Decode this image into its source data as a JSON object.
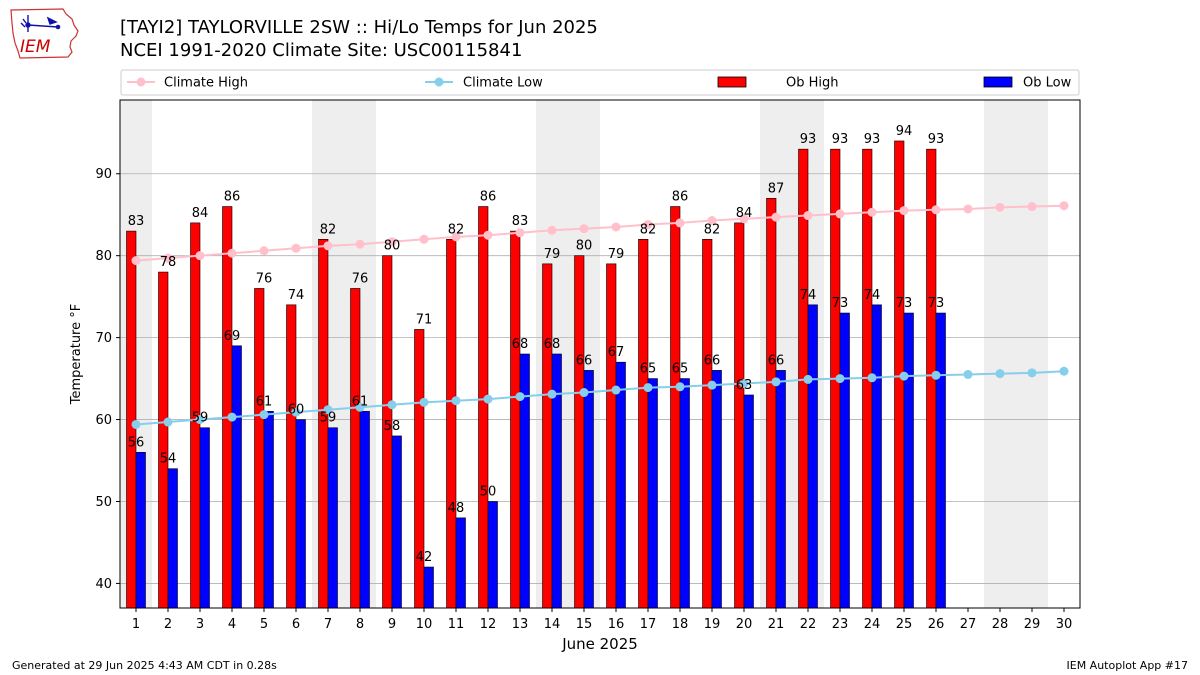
{
  "logo": {
    "text": "IEM",
    "icon": "iowa-state-outline-icon",
    "color": "#cc0000"
  },
  "header": {
    "title_line_1": "[TAYI2] TAYLORVILLE 2SW :: Hi/Lo Temps for Jun 2025",
    "title_line_2": "NCEI 1991-2020 Climate Site: USC00115841"
  },
  "footer": {
    "generated": "Generated at 29 Jun 2025 4:43 AM CDT in 0.28s",
    "app": "IEM Autoplot App #17"
  },
  "chart_data": {
    "type": "bar",
    "xlabel": "June 2025",
    "ylabel": "Temperature °F",
    "ylim": [
      37,
      99
    ],
    "yticks": [
      40,
      50,
      60,
      70,
      80,
      90
    ],
    "grid": "horizontal",
    "legend_placement": "top",
    "categories": [
      "1",
      "2",
      "3",
      "4",
      "5",
      "6",
      "7",
      "8",
      "9",
      "10",
      "11",
      "12",
      "13",
      "14",
      "15",
      "16",
      "17",
      "18",
      "19",
      "20",
      "21",
      "22",
      "23",
      "24",
      "25",
      "26",
      "27",
      "28",
      "29",
      "30"
    ],
    "weekend_shading": [
      [
        1,
        1
      ],
      [
        7,
        8
      ],
      [
        14,
        15
      ],
      [
        21,
        22
      ],
      [
        28,
        29
      ]
    ],
    "series": [
      {
        "name": "Climate High",
        "kind": "line",
        "color": "#ffc0cb",
        "values": [
          79.4,
          79.7,
          80.0,
          80.3,
          80.6,
          80.9,
          81.2,
          81.4,
          81.7,
          82.0,
          82.3,
          82.5,
          82.8,
          83.1,
          83.3,
          83.5,
          83.8,
          84.0,
          84.3,
          84.5,
          84.7,
          84.9,
          85.1,
          85.3,
          85.5,
          85.6,
          85.7,
          85.9,
          86.0,
          86.1
        ]
      },
      {
        "name": "Climate Low",
        "kind": "line",
        "color": "#87ceeb",
        "values": [
          59.4,
          59.7,
          60.0,
          60.3,
          60.6,
          60.9,
          61.2,
          61.5,
          61.8,
          62.1,
          62.3,
          62.5,
          62.8,
          63.1,
          63.3,
          63.6,
          63.9,
          64.0,
          64.2,
          64.4,
          64.6,
          64.9,
          65.0,
          65.1,
          65.3,
          65.4,
          65.5,
          65.6,
          65.7,
          65.9
        ]
      },
      {
        "name": "Ob High",
        "kind": "bar",
        "color": "#ff0000",
        "values": [
          83,
          78,
          84,
          86,
          76,
          74,
          82,
          76,
          80,
          71,
          82,
          86,
          83,
          79,
          80,
          79,
          82,
          86,
          82,
          84,
          87,
          93,
          93,
          93,
          94,
          93,
          null,
          null,
          null,
          null
        ]
      },
      {
        "name": "Ob Low",
        "kind": "bar",
        "color": "#0000ff",
        "values": [
          56,
          54,
          59,
          69,
          61,
          60,
          59,
          61,
          58,
          42,
          48,
          50,
          68,
          68,
          66,
          67,
          65,
          65,
          66,
          63,
          66,
          74,
          73,
          74,
          73,
          73,
          null,
          null,
          null,
          null
        ]
      }
    ]
  }
}
